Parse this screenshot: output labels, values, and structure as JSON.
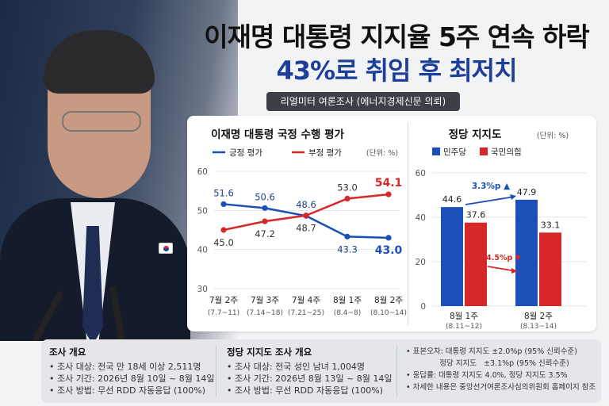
{
  "headline": {
    "line1": "이재명 대통령 지지율 5주 연속 하락",
    "line2": "43%로 취임 후 최저치"
  },
  "source_label": "리얼미터 여론조사 (에너지경제신문 의뢰)",
  "chart_data": [
    {
      "type": "line",
      "title": "이재명 대통령 국정 수행 평가",
      "unit": "(단위: %)",
      "categories": [
        "7월 2주",
        "7월 3주",
        "7월 4주",
        "8월 1주",
        "8월 2주"
      ],
      "category_dates": [
        "(7.7~11)",
        "(7.14~18)",
        "(7.21~25)",
        "(8.4~8)",
        "(8.10~14)"
      ],
      "ylim": [
        30,
        60
      ],
      "yticks": [
        30,
        40,
        50,
        60
      ],
      "series": [
        {
          "name": "긍정 평가",
          "color": "#1d4fb8",
          "values": [
            51.6,
            50.6,
            48.6,
            43.3,
            43.0
          ]
        },
        {
          "name": "부정 평가",
          "color": "#d62828",
          "values": [
            45.0,
            47.2,
            48.7,
            53.0,
            54.1
          ]
        }
      ]
    },
    {
      "type": "bar",
      "title": "정당 지지도",
      "unit": "(단위: %)",
      "categories": [
        "8월 1주",
        "8월 2주"
      ],
      "category_dates": [
        "(8.11~12)",
        "(8.13~14)"
      ],
      "ylim": [
        0,
        60
      ],
      "yticks": [
        0,
        20,
        40,
        60
      ],
      "series": [
        {
          "name": "민주당",
          "color": "#1d4fb8",
          "values": [
            44.6,
            47.9
          ]
        },
        {
          "name": "국민의힘",
          "color": "#d62828",
          "values": [
            37.6,
            33.1
          ]
        }
      ],
      "annotations": [
        {
          "text": "3.3%p ▲",
          "color": "#1d4fb8"
        },
        {
          "text": "4.5%p ▼",
          "color": "#d62828"
        }
      ]
    }
  ],
  "info": {
    "approval_survey": {
      "heading": "조사 개요",
      "lines": [
        "• 조사 대상: 전국 만 18세 이상 2,511명",
        "• 조사 기간: 2026년 8월 10일 ~ 8월 14일",
        "• 조사 방법: 무선 RDD 자동응답 (100%)"
      ]
    },
    "party_survey": {
      "heading": "정당 지지도 조사 개요",
      "lines": [
        "• 조사 대상: 전국 성인 남녀 1,004명",
        "• 조사 기간: 2026년 8월 13일 ~ 8월 14일",
        "• 조사 방법: 무선 RDD 자동응답 (100%)"
      ]
    },
    "notes": {
      "lines": [
        "• 표본오차: 대통령 지지도 ±2.0%p (95% 신뢰수준)",
        "              정당 지지도   ±3.1%p (95% 신뢰수준)",
        "• 응답률: 대통령 지지도 4.0%, 정당 지지도 3.5%",
        "• 자세한 내용은 중앙선거여론조사심의위원회 홈페이지 참조"
      ]
    }
  }
}
